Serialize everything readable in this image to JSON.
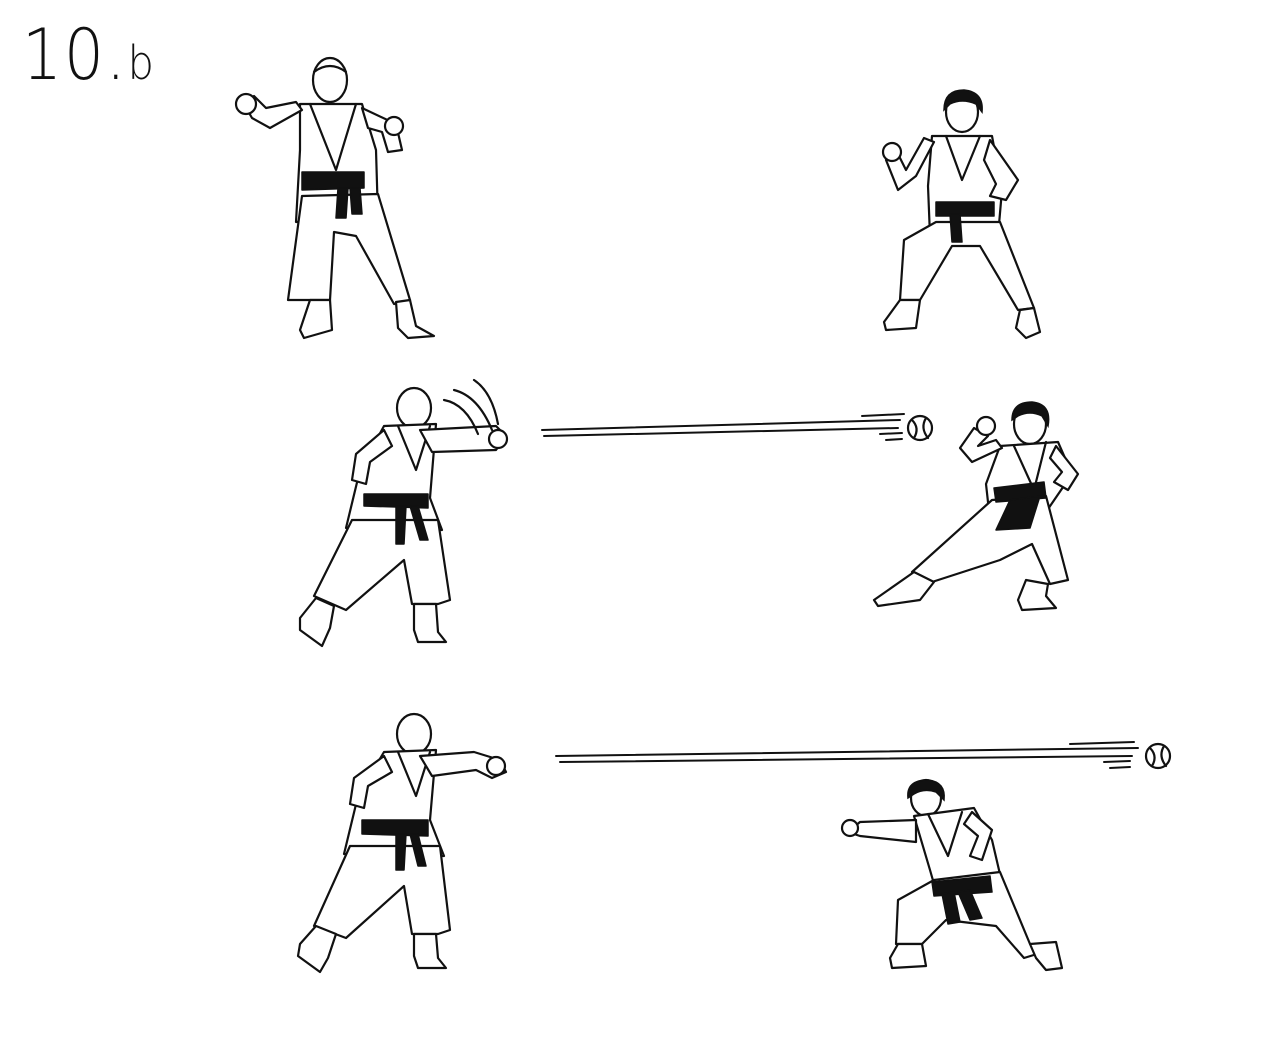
{
  "figure_label": {
    "number": "10",
    "separator": ".",
    "letter": "b"
  },
  "colors": {
    "ink": "#111111",
    "background": "#ffffff"
  },
  "panels": [
    {
      "id": "panel-1",
      "left_figure": "karateka-ready-stance",
      "right_figure": "karateka-guard-stance",
      "ball": false
    },
    {
      "id": "panel-2",
      "left_figure": "karateka-throwing-punch",
      "right_figure": "karateka-dodging-stance",
      "ball": true
    },
    {
      "id": "panel-3",
      "left_figure": "karateka-punch-follow-through",
      "right_figure": "karateka-low-punch",
      "ball": true
    }
  ]
}
